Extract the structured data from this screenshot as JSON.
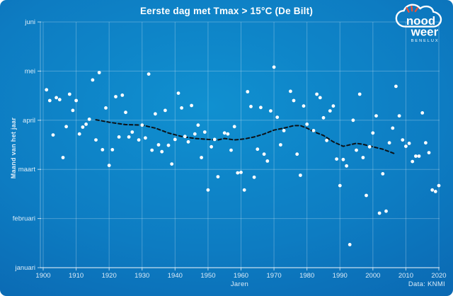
{
  "header": {
    "title": "Eerste dag met Tmax > 15°C (De Bilt)"
  },
  "credit": "Data: KNMI",
  "logo": {
    "word1": "nood",
    "word2": "weer",
    "word3": "BENELUX",
    "accent_color": "#e8503a",
    "text_color": "#ffffff"
  },
  "colors": {
    "background_center": "#1090d0",
    "background_edge": "#084f9c",
    "gridline": "rgba(255,255,255,0.25)",
    "axis_line": "rgba(255,255,255,0.7)",
    "tick_text": "#dcecf8",
    "point": "#ffffff",
    "trend": "#0c1218"
  },
  "chart_data": {
    "type": "scatter",
    "title": "Eerste dag met Tmax > 15°C (De Bilt)",
    "xlabel": "Jaren",
    "ylabel": "Maand van het jaar",
    "x_range": [
      1900,
      2020
    ],
    "x_ticks": [
      1900,
      1910,
      1920,
      1930,
      1940,
      1950,
      1960,
      1970,
      1980,
      1990,
      2000,
      2010,
      2020
    ],
    "y_tick_labels": [
      "januari",
      "februari",
      "maart",
      "april",
      "mei",
      "juni"
    ],
    "y_scale_note": "month index, 0 = 1 januari gridline, 5 = 1 juni gridline",
    "grid": true,
    "legend": "none",
    "points": [
      [
        1901,
        3.62
      ],
      [
        1902,
        3.4
      ],
      [
        1903,
        2.7
      ],
      [
        1904,
        3.46
      ],
      [
        1905,
        3.42
      ],
      [
        1906,
        2.24
      ],
      [
        1907,
        2.87
      ],
      [
        1908,
        3.53
      ],
      [
        1909,
        3.2
      ],
      [
        1910,
        3.4
      ],
      [
        1911,
        2.72
      ],
      [
        1912,
        2.86
      ],
      [
        1913,
        2.92
      ],
      [
        1914,
        3.02
      ],
      [
        1915,
        3.82
      ],
      [
        1916,
        2.6
      ],
      [
        1917,
        3.97
      ],
      [
        1918,
        2.4
      ],
      [
        1919,
        3.25
      ],
      [
        1920,
        2.08
      ],
      [
        1921,
        2.4
      ],
      [
        1922,
        3.48
      ],
      [
        1923,
        2.66
      ],
      [
        1924,
        3.51
      ],
      [
        1925,
        3.16
      ],
      [
        1926,
        2.66
      ],
      [
        1927,
        2.76
      ],
      [
        1929,
        2.6
      ],
      [
        1930,
        2.9
      ],
      [
        1931,
        2.64
      ],
      [
        1932,
        3.94
      ],
      [
        1933,
        2.39
      ],
      [
        1934,
        3.13
      ],
      [
        1935,
        2.5
      ],
      [
        1936,
        2.36
      ],
      [
        1937,
        3.2
      ],
      [
        1938,
        2.49
      ],
      [
        1939,
        2.11
      ],
      [
        1940,
        2.61
      ],
      [
        1941,
        3.55
      ],
      [
        1942,
        3.25
      ],
      [
        1943,
        2.67
      ],
      [
        1944,
        2.56
      ],
      [
        1945,
        3.3
      ],
      [
        1946,
        2.72
      ],
      [
        1947,
        2.9
      ],
      [
        1948,
        2.24
      ],
      [
        1949,
        2.76
      ],
      [
        1950,
        1.58
      ],
      [
        1951,
        2.46
      ],
      [
        1952,
        2.61
      ],
      [
        1953,
        1.85
      ],
      [
        1955,
        2.74
      ],
      [
        1956,
        2.72
      ],
      [
        1957,
        2.39
      ],
      [
        1958,
        2.87
      ],
      [
        1959,
        1.93
      ],
      [
        1960,
        1.94
      ],
      [
        1961,
        1.58
      ],
      [
        1962,
        3.58
      ],
      [
        1963,
        3.28
      ],
      [
        1964,
        1.84
      ],
      [
        1965,
        2.41
      ],
      [
        1966,
        3.26
      ],
      [
        1967,
        2.31
      ],
      [
        1968,
        2.17
      ],
      [
        1969,
        3.19
      ],
      [
        1970,
        4.08
      ],
      [
        1971,
        3.06
      ],
      [
        1972,
        2.5
      ],
      [
        1973,
        2.79
      ],
      [
        1975,
        3.59
      ],
      [
        1976,
        3.4
      ],
      [
        1977,
        2.31
      ],
      [
        1978,
        1.88
      ],
      [
        1979,
        3.29
      ],
      [
        1980,
        2.92
      ],
      [
        1982,
        2.79
      ],
      [
        1983,
        3.53
      ],
      [
        1984,
        3.46
      ],
      [
        1985,
        3.05
      ],
      [
        1986,
        2.59
      ],
      [
        1987,
        3.19
      ],
      [
        1988,
        3.29
      ],
      [
        1989,
        2.21
      ],
      [
        1990,
        1.67
      ],
      [
        1991,
        2.2
      ],
      [
        1992,
        2.07
      ],
      [
        1993,
        0.47
      ],
      [
        1994,
        3.0
      ],
      [
        1995,
        2.39
      ],
      [
        1996,
        3.53
      ],
      [
        1997,
        2.24
      ],
      [
        1998,
        1.47
      ],
      [
        1999,
        2.46
      ],
      [
        2000,
        2.74
      ],
      [
        2001,
        3.09
      ],
      [
        2002,
        1.11
      ],
      [
        2003,
        1.91
      ],
      [
        2004,
        1.15
      ],
      [
        2005,
        2.54
      ],
      [
        2006,
        2.84
      ],
      [
        2007,
        3.69
      ],
      [
        2008,
        3.09
      ],
      [
        2009,
        2.6
      ],
      [
        2010,
        2.47
      ],
      [
        2011,
        2.53
      ],
      [
        2012,
        2.16
      ],
      [
        2013,
        2.27
      ],
      [
        2014,
        2.27
      ],
      [
        2015,
        3.15
      ],
      [
        2016,
        2.54
      ],
      [
        2017,
        2.34
      ],
      [
        2018,
        1.58
      ],
      [
        2019,
        1.55
      ],
      [
        2020,
        1.67
      ]
    ],
    "trend": {
      "name": "moving-average trend line",
      "style": "dashed",
      "values": [
        [
          1916,
          3.01
        ],
        [
          1920,
          2.96
        ],
        [
          1925,
          2.91
        ],
        [
          1930,
          2.9
        ],
        [
          1934,
          2.84
        ],
        [
          1938,
          2.74
        ],
        [
          1942,
          2.67
        ],
        [
          1946,
          2.63
        ],
        [
          1950,
          2.61
        ],
        [
          1953,
          2.6
        ],
        [
          1955,
          2.63
        ],
        [
          1958,
          2.6
        ],
        [
          1961,
          2.62
        ],
        [
          1964,
          2.66
        ],
        [
          1967,
          2.72
        ],
        [
          1970,
          2.8
        ],
        [
          1973,
          2.84
        ],
        [
          1976,
          2.89
        ],
        [
          1978,
          2.89
        ],
        [
          1980,
          2.84
        ],
        [
          1982,
          2.77
        ],
        [
          1985,
          2.69
        ],
        [
          1988,
          2.56
        ],
        [
          1991,
          2.47
        ],
        [
          1993,
          2.5
        ],
        [
          1995,
          2.53
        ],
        [
          1997,
          2.51
        ],
        [
          2000,
          2.46
        ],
        [
          2003,
          2.41
        ],
        [
          2005,
          2.36
        ],
        [
          2007,
          2.31
        ]
      ]
    }
  }
}
